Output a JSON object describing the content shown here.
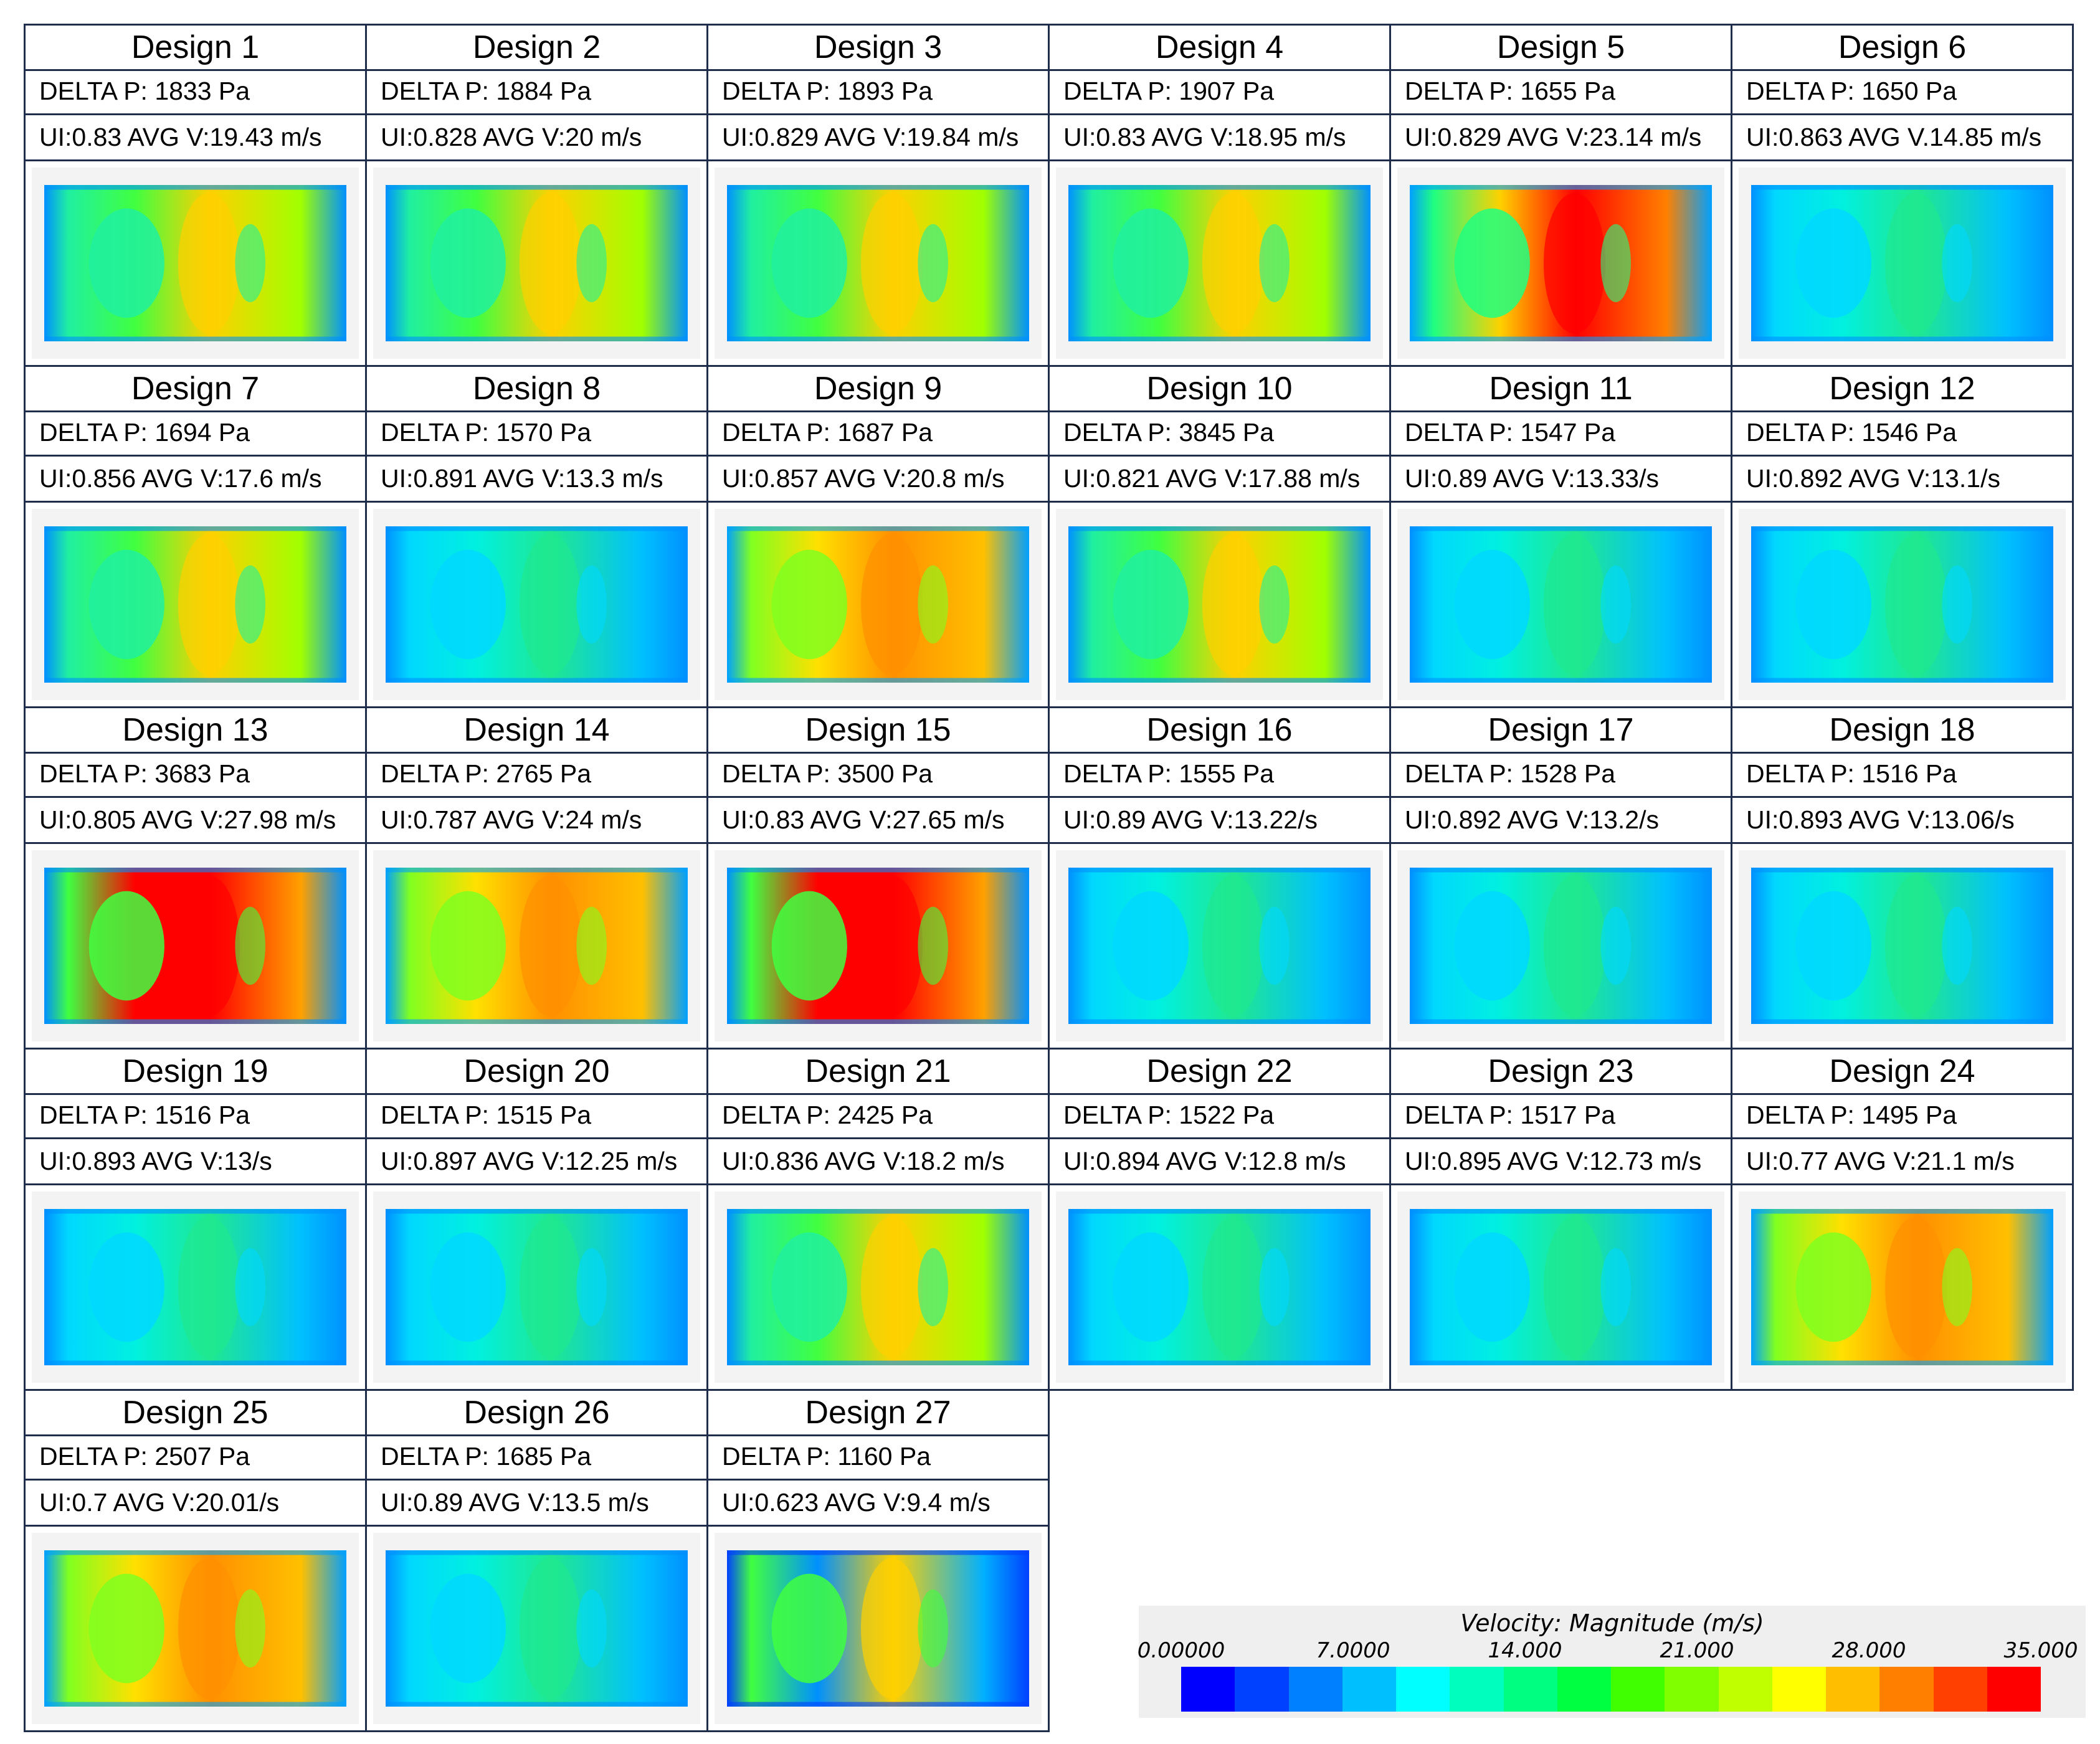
{
  "designs": [
    {
      "title": "Design 1",
      "dp": "DELTA P: 1833 Pa",
      "ui": "UI:0.83 AVG V:19.43 m/s"
    },
    {
      "title": "Design 2",
      "dp": "DELTA P: 1884 Pa",
      "ui": "UI:0.828 AVG V:20 m/s"
    },
    {
      "title": "Design 3",
      "dp": "DELTA P: 1893 Pa",
      "ui": "UI:0.829 AVG V:19.84 m/s"
    },
    {
      "title": "Design 4",
      "dp": "DELTA P: 1907 Pa",
      "ui": "UI:0.83 AVG V:18.95 m/s"
    },
    {
      "title": "Design 5",
      "dp": "DELTA P: 1655 Pa",
      "ui": "UI:0.829 AVG V:23.14 m/s"
    },
    {
      "title": "Design 6",
      "dp": "DELTA P: 1650 Pa",
      "ui": "UI:0.863 AVG V.14.85 m/s"
    },
    {
      "title": "Design 7",
      "dp": "DELTA P: 1694 Pa",
      "ui": "UI:0.856 AVG V:17.6 m/s"
    },
    {
      "title": "Design 8",
      "dp": "DELTA P: 1570 Pa",
      "ui": "UI:0.891 AVG V:13.3 m/s"
    },
    {
      "title": "Design 9",
      "dp": "DELTA P: 1687 Pa",
      "ui": "UI:0.857 AVG V:20.8 m/s"
    },
    {
      "title": "Design 10",
      "dp": "DELTA P: 3845 Pa",
      "ui": "UI:0.821 AVG V:17.88 m/s"
    },
    {
      "title": "Design 11",
      "dp": "DELTA P: 1547 Pa",
      "ui": "UI:0.89 AVG V:13.33/s"
    },
    {
      "title": "Design 12",
      "dp": "DELTA P: 1546 Pa",
      "ui": "UI:0.892 AVG V:13.1/s"
    },
    {
      "title": "Design 13",
      "dp": "DELTA P: 3683 Pa",
      "ui": "UI:0.805 AVG V:27.98 m/s"
    },
    {
      "title": "Design 14",
      "dp": "DELTA P: 2765 Pa",
      "ui": "UI:0.787 AVG V:24 m/s"
    },
    {
      "title": "Design 15",
      "dp": "DELTA P: 3500 Pa",
      "ui": "UI:0.83 AVG V:27.65 m/s"
    },
    {
      "title": "Design 16",
      "dp": "DELTA P: 1555 Pa",
      "ui": "UI:0.89 AVG V:13.22/s"
    },
    {
      "title": "Design 17",
      "dp": "DELTA P: 1528 Pa",
      "ui": "UI:0.892 AVG V:13.2/s"
    },
    {
      "title": "Design 18",
      "dp": "DELTA P: 1516 Pa",
      "ui": "UI:0.893 AVG V:13.06/s"
    },
    {
      "title": "Design 19",
      "dp": "DELTA P: 1516 Pa",
      "ui": "UI:0.893 AVG V:13/s"
    },
    {
      "title": "Design 20",
      "dp": "DELTA P: 1515 Pa",
      "ui": "UI:0.897 AVG V:12.25 m/s"
    },
    {
      "title": "Design 21",
      "dp": "DELTA P: 2425 Pa",
      "ui": "UI:0.836 AVG V:18.2 m/s"
    },
    {
      "title": "Design 22",
      "dp": "DELTA P: 1522 Pa",
      "ui": "UI:0.894 AVG V:12.8 m/s"
    },
    {
      "title": "Design 23",
      "dp": "DELTA P: 1517 Pa",
      "ui": "UI:0.895 AVG V:12.73 m/s"
    },
    {
      "title": "Design 24",
      "dp": "DELTA P: 1495 Pa",
      "ui": "UI:0.77 AVG V:21.1 m/s"
    },
    {
      "title": "Design 25",
      "dp": "DELTA P: 2507 Pa",
      "ui": "UI:0.7 AVG V:20.01/s"
    },
    {
      "title": "Design 26",
      "dp": "DELTA P: 1685 Pa",
      "ui": "UI:0.89 AVG V:13.5 m/s"
    },
    {
      "title": "Design 27",
      "dp": "DELTA P: 1160 Pa",
      "ui": "UI:0.623 AVG V:9.4 m/s"
    }
  ],
  "legend": {
    "title": "Velocity: Magnitude (m/s)",
    "ticks": [
      "0.00000",
      "7.0000",
      "14.000",
      "21.000",
      "28.000",
      "35.000"
    ],
    "range": [
      0,
      35
    ],
    "colors": [
      "#0000ff",
      "#0040ff",
      "#0080ff",
      "#00bfff",
      "#00ffff",
      "#00ffbf",
      "#00ff80",
      "#00ff40",
      "#40ff00",
      "#80ff00",
      "#bfff00",
      "#ffff00",
      "#ffbf00",
      "#ff8000",
      "#ff4000",
      "#ff0000"
    ]
  }
}
